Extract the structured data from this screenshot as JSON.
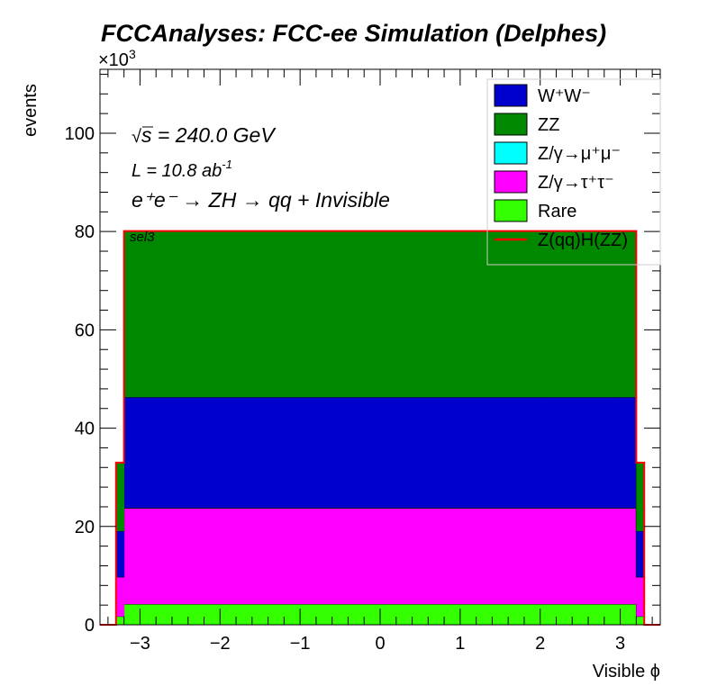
{
  "chart_data": {
    "type": "area",
    "stacked": true,
    "title": "FCCAnalyses: FCC-ee Simulation (Delphes)",
    "xlabel": "Visible ϕ",
    "ylabel": "events",
    "y_multiplier_label": "×10",
    "y_multiplier_exponent": "3",
    "xlim": [
      -3.5,
      3.5
    ],
    "ylim": [
      0,
      113
    ],
    "x_ticks": [
      -3,
      -2,
      -1,
      0,
      1,
      2,
      3
    ],
    "x_tick_labels": [
      "−3",
      "−2",
      "−1",
      "0",
      "1",
      "2",
      "3"
    ],
    "y_ticks": [
      0,
      20,
      40,
      60,
      80,
      100
    ],
    "y_tick_labels": [
      "0",
      "20",
      "40",
      "60",
      "80",
      "100"
    ],
    "bins": {
      "edges_low": -3.2,
      "edges_high": 3.2,
      "count": 64,
      "edge_left_bin": [
        -3.3,
        -3.2
      ],
      "edge_right_bin": [
        3.2,
        3.3
      ]
    },
    "series": [
      {
        "name": "Rare",
        "color": "#33ff00",
        "value_center": 4.2,
        "value_edge": 1.7
      },
      {
        "name": "Z/γ→τ+τ-",
        "color": "#ff00ff",
        "value_center": 19.5,
        "value_edge": 8.0
      },
      {
        "name": "Z/γ→μ+μ-",
        "color": "#00ffff",
        "value_center": 0.1,
        "value_edge": 0.05
      },
      {
        "name": "W+W-",
        "color": "#0000cc",
        "value_center": 22.5,
        "value_edge": 9.3
      },
      {
        "name": "ZZ",
        "color": "#008800",
        "value_center": 33.8,
        "value_edge": 14.0
      }
    ],
    "signal": {
      "name": "Z(qq)H(ZZ)",
      "color": "#ff0000",
      "total_center": 80.1,
      "total_edge": 33.0
    },
    "legend_position": "top-right",
    "annotations": {
      "sqrts_sym": "√",
      "sqrts_s": "s",
      "sqrts_rest": " = 240.0 GeV",
      "lumi_base": "L = 10.8 ab",
      "lumi_exp": "-1",
      "process": "e⁺e⁻ → ZH → qq + Invisible",
      "selection": "sel3"
    },
    "legend": [
      {
        "key": "ww",
        "label": "W⁺W⁻",
        "color": "#0000cc",
        "style": "box"
      },
      {
        "key": "zz",
        "label": "ZZ",
        "color": "#008800",
        "style": "box"
      },
      {
        "key": "mumu",
        "label": "Z/γ→μ⁺μ⁻",
        "color": "#00ffff",
        "style": "box"
      },
      {
        "key": "tautau",
        "label": "Z/γ→τ⁺τ⁻",
        "color": "#ff00ff",
        "style": "box"
      },
      {
        "key": "rare",
        "label": "Rare",
        "color": "#33ff00",
        "style": "box"
      },
      {
        "key": "signal",
        "label": "Z(qq)H(ZZ)",
        "color": "#ff0000",
        "style": "line"
      }
    ]
  }
}
